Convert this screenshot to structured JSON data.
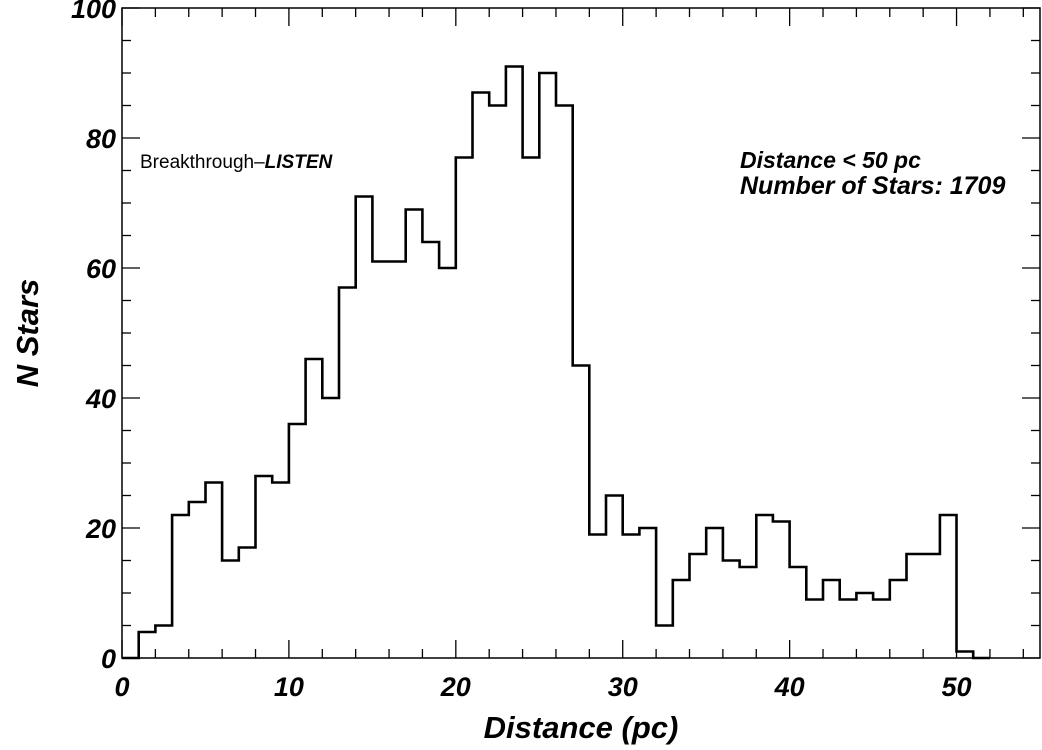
{
  "chart_data": {
    "type": "bar",
    "style": "step-histogram",
    "xlabel": "Distance (pc)",
    "ylabel": "N Stars",
    "xlim": [
      0,
      55
    ],
    "ylim": [
      0,
      100
    ],
    "x_ticks": [
      0,
      10,
      20,
      30,
      40,
      50
    ],
    "y_ticks": [
      0,
      20,
      40,
      60,
      80,
      100
    ],
    "bin_width": 1,
    "bin_start": 0,
    "values": [
      0,
      4,
      5,
      22,
      24,
      27,
      15,
      17,
      28,
      27,
      36,
      46,
      40,
      57,
      71,
      61,
      61,
      69,
      64,
      60,
      77,
      87,
      85,
      91,
      77,
      90,
      85,
      45,
      19,
      25,
      19,
      20,
      5,
      12,
      16,
      20,
      15,
      14,
      22,
      21,
      14,
      9,
      12,
      9,
      10,
      9,
      12,
      16,
      16,
      22,
      1,
      0
    ],
    "grid": false,
    "line_color": "#000000",
    "annotations": {
      "survey_prefix": "Breakthrough–",
      "survey_name": "LISTEN",
      "distance_cut": "Distance < 50 pc",
      "star_count": "Number of Stars: 1709"
    }
  }
}
